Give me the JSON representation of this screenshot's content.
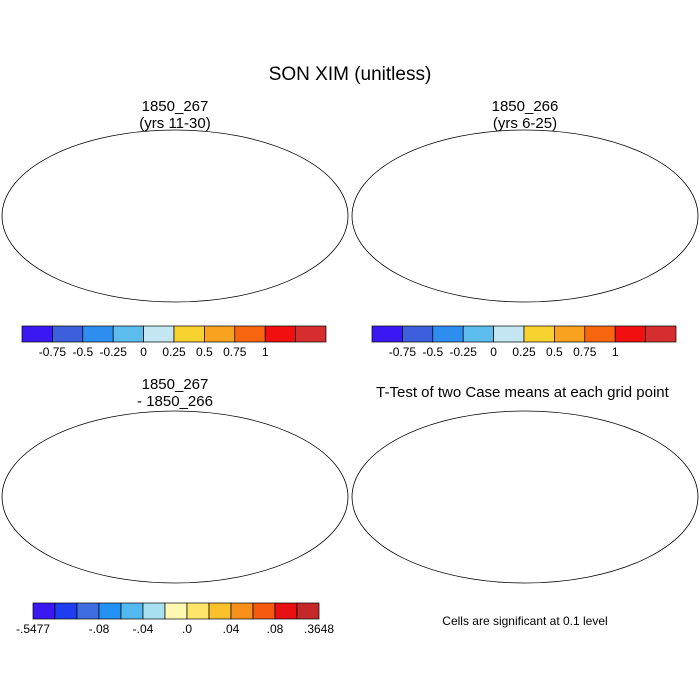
{
  "title": "SON XIM (unitless)",
  "panels": [
    {
      "title1": "1850_267",
      "title2": "(yrs 11-30)",
      "kind": "field"
    },
    {
      "title1": "1850_266",
      "title2": "(yrs 6-25)",
      "kind": "field"
    },
    {
      "title1": "1850_267",
      "title2": "- 1850_266",
      "kind": "diff"
    },
    {
      "title1": "T-Test of two Case means at each grid point",
      "title2": "",
      "kind": "ttest"
    }
  ],
  "colorbars": {
    "field": {
      "colors": [
        "#3b18f2",
        "#3d5fdc",
        "#2e8ef0",
        "#5cbcee",
        "#c4e6f2",
        "#f8d22e",
        "#f8a21f",
        "#f7650f",
        "#f20f0f",
        "#d62e2e"
      ],
      "labels": [
        "-0.75",
        "-0.5",
        "-0.25",
        "0",
        "0.25",
        "0.5",
        "0.75",
        "1"
      ]
    },
    "diff": {
      "colors": [
        "#3b18f2",
        "#1f3df0",
        "#3d6de0",
        "#2492f4",
        "#52baf0",
        "#a8e0f2",
        "#fff8b0",
        "#fde46a",
        "#fbc02a",
        "#f8901a",
        "#f55a10",
        "#e81010",
        "#c42828"
      ],
      "labels": [
        ".5477",
        ".08",
        ".04",
        ".0",
        ".04",
        ".08",
        ".3648"
      ],
      "labels_full": [
        "-.5477",
        "-.08",
        "-.04",
        ".0",
        ".04",
        ".08",
        ".3648"
      ]
    }
  },
  "ttest_note": "Cells are significant at 0.1 level",
  "significance_color": "#e60000"
}
